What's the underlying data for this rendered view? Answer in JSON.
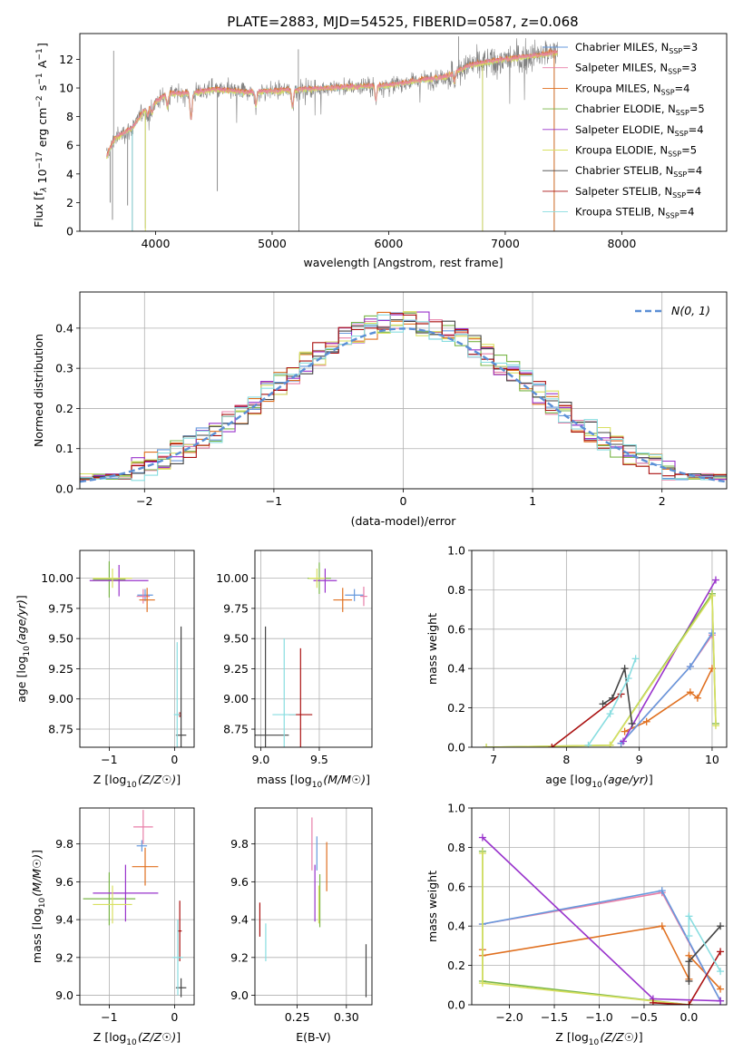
{
  "title": "PLATE=2883, MJD=54525, FIBERID=0587, z=0.068",
  "colors": {
    "chabrier_miles": "#6699dd",
    "salpeter_miles": "#e87fa8",
    "kroupa_miles": "#e07020",
    "chabrier_elodie": "#7ab648",
    "salpeter_elodie": "#9933cc",
    "kroupa_elodie": "#d8e060",
    "chabrier_stelib": "#444444",
    "salpeter_stelib": "#aa1111",
    "kroupa_stelib": "#88dde0",
    "observed": "#808080",
    "gaussian": "#5b8fd6",
    "grid": "#b0b0b0"
  },
  "chart_data": [
    {
      "id": "spectrum",
      "type": "line",
      "xlabel": "wavelength [Angstrom, rest frame]",
      "ylabel": "Flux [f_λ 10^-17 erg cm^-2 s^-1 A^-1]",
      "xlim": [
        3350,
        8900
      ],
      "ylim": [
        0,
        13.8
      ],
      "xticks": [
        4000,
        5000,
        6000,
        7000,
        8000
      ],
      "yticks": [
        0,
        2,
        4,
        6,
        8,
        10,
        12
      ],
      "grid": false,
      "legend_position": "right",
      "legend": [
        {
          "label": "Chabrier MILES, N",
          "sub": "SSP",
          "suffix": "=3",
          "color_key": "chabrier_miles"
        },
        {
          "label": "Salpeter MILES, N",
          "sub": "SSP",
          "suffix": "=3",
          "color_key": "salpeter_miles"
        },
        {
          "label": "Kroupa MILES, N",
          "sub": "SSP",
          "suffix": "=4",
          "color_key": "kroupa_miles"
        },
        {
          "label": "Chabrier ELODIE, N",
          "sub": "SSP",
          "suffix": "=5",
          "color_key": "chabrier_elodie"
        },
        {
          "label": "Salpeter ELODIE, N",
          "sub": "SSP",
          "suffix": "=4",
          "color_key": "salpeter_elodie"
        },
        {
          "label": "Kroupa ELODIE, N",
          "sub": "SSP",
          "suffix": "=5",
          "color_key": "kroupa_elodie"
        },
        {
          "label": "Chabrier STELIB, N",
          "sub": "SSP",
          "suffix": "=4",
          "color_key": "chabrier_stelib"
        },
        {
          "label": "Salpeter STELIB, N",
          "sub": "SSP",
          "suffix": "=4",
          "color_key": "salpeter_stelib"
        },
        {
          "label": "Kroupa STELIB, N",
          "sub": "SSP",
          "suffix": "=4",
          "color_key": "kroupa_stelib"
        }
      ],
      "continuum": [
        [
          3580,
          5.2
        ],
        [
          3650,
          6.5
        ],
        [
          3800,
          7.2
        ],
        [
          3900,
          8.4
        ],
        [
          4000,
          9.0
        ],
        [
          4100,
          9.6
        ],
        [
          4300,
          9.6
        ],
        [
          4500,
          9.9
        ],
        [
          4800,
          9.7
        ],
        [
          5000,
          9.8
        ],
        [
          5500,
          10.0
        ],
        [
          6000,
          10.2
        ],
        [
          6500,
          10.8
        ],
        [
          6700,
          11.6
        ],
        [
          7000,
          12.0
        ],
        [
          7300,
          12.3
        ],
        [
          7450,
          12.5
        ]
      ],
      "absorption_features": [
        [
          3934,
          0.55
        ],
        [
          3969,
          0.55
        ],
        [
          4102,
          0.9
        ],
        [
          4304,
          1.8
        ],
        [
          4861,
          1.0
        ],
        [
          5175,
          1.2
        ],
        [
          5890,
          1.0
        ],
        [
          6563,
          0.6
        ]
      ],
      "deep_spikes": [
        [
          3610,
          2.0
        ],
        [
          3630,
          0.8
        ],
        [
          3760,
          1.8
        ],
        [
          3800,
          0.0
        ],
        [
          3912,
          0.2
        ],
        [
          5230,
          0.0
        ],
        [
          6805,
          0.0
        ],
        [
          7420,
          0.0
        ],
        [
          4530,
          2.8
        ]
      ],
      "tall_spikes": [
        [
          3640,
          12.6
        ],
        [
          5225,
          12.7
        ],
        [
          6600,
          13.6
        ],
        [
          7350,
          13.2
        ]
      ]
    },
    {
      "id": "residuals",
      "type": "histogram",
      "xlabel": "(data-model)/error",
      "ylabel": "Normed distribution",
      "xlim": [
        -2.5,
        2.5
      ],
      "ylim": [
        0,
        0.49
      ],
      "xticks": [
        -2,
        -1,
        0,
        1,
        2
      ],
      "yticks": [
        0.0,
        0.1,
        0.2,
        0.3,
        0.4
      ],
      "grid": true,
      "legend_position": "top-right",
      "gaussian_label": "N(0, 1)",
      "bin_width": 0.1,
      "series_count": 9
    },
    {
      "id": "age-vs-Z",
      "type": "errorbar",
      "xlabel": "Z [log10(Z/Z☉)]",
      "ylabel": "age  [log10(age/yr)]",
      "xlim": [
        -1.45,
        0.3
      ],
      "ylim": [
        8.6,
        10.23
      ],
      "xticks": [
        -1,
        0
      ],
      "yticks": [
        8.75,
        9.0,
        9.25,
        9.5,
        9.75,
        10.0
      ],
      "grid": true,
      "points": [
        {
          "k": "chabrier_miles",
          "x": -0.45,
          "y": 9.86,
          "ex": 0.12,
          "ey": 0.05
        },
        {
          "k": "salpeter_miles",
          "x": -0.48,
          "y": 9.85,
          "ex": 0.1,
          "ey": 0.06
        },
        {
          "k": "kroupa_miles",
          "x": -0.42,
          "y": 9.82,
          "ex": 0.12,
          "ey": 0.1
        },
        {
          "k": "chabrier_elodie",
          "x": -1.0,
          "y": 9.99,
          "ex": 0.25,
          "ey": 0.15
        },
        {
          "k": "salpeter_elodie",
          "x": -0.85,
          "y": 9.98,
          "ex": 0.45,
          "ey": 0.13
        },
        {
          "k": "kroupa_elodie",
          "x": -0.95,
          "y": 10.0,
          "ex": 0.3,
          "ey": 0.08
        },
        {
          "k": "chabrier_stelib",
          "x": 0.1,
          "y": 8.7,
          "ex": 0.08,
          "ey": 0.9
        },
        {
          "k": "salpeter_stelib",
          "x": 0.08,
          "y": 8.87,
          "ex": 0.02,
          "ey": 0.02
        },
        {
          "k": "kroupa_stelib",
          "x": 0.04,
          "y": 8.87,
          "ex": 0.05,
          "ey": 0.6
        }
      ]
    },
    {
      "id": "age-vs-mass",
      "type": "errorbar",
      "xlabel": "mass [log10(M/M☉)]",
      "ylabel": "",
      "xlim": [
        8.95,
        9.95
      ],
      "ylim": [
        8.6,
        10.23
      ],
      "xticks": [
        9.0,
        9.5
      ],
      "yticks": [
        8.75,
        9.0,
        9.25,
        9.5,
        9.75,
        10.0
      ],
      "grid": true,
      "points": [
        {
          "k": "chabrier_miles",
          "x": 9.8,
          "y": 9.86,
          "ex": 0.08,
          "ey": 0.05
        },
        {
          "k": "salpeter_miles",
          "x": 9.88,
          "y": 9.85,
          "ex": 0.03,
          "ey": 0.08
        },
        {
          "k": "kroupa_miles",
          "x": 9.7,
          "y": 9.82,
          "ex": 0.08,
          "ey": 0.1
        },
        {
          "k": "chabrier_elodie",
          "x": 9.5,
          "y": 10.0,
          "ex": 0.1,
          "ey": 0.13
        },
        {
          "k": "salpeter_elodie",
          "x": 9.55,
          "y": 9.98,
          "ex": 0.1,
          "ey": 0.1
        },
        {
          "k": "kroupa_elodie",
          "x": 9.48,
          "y": 10.0,
          "ex": 0.07,
          "ey": 0.08
        },
        {
          "k": "chabrier_stelib",
          "x": 9.04,
          "y": 8.7,
          "ex": 0.2,
          "ey": 0.9
        },
        {
          "k": "salpeter_stelib",
          "x": 9.34,
          "y": 8.87,
          "ex": 0.1,
          "ey": 0.55
        },
        {
          "k": "kroupa_stelib",
          "x": 9.2,
          "y": 8.87,
          "ex": 0.1,
          "ey": 0.63
        }
      ]
    },
    {
      "id": "massweight-vs-age",
      "type": "line",
      "xlabel": "age  [log10(age/yr)]",
      "ylabel": "mass weight",
      "xlim": [
        6.7,
        10.2
      ],
      "ylim": [
        0,
        1.0
      ],
      "xticks": [
        7,
        8,
        9,
        10
      ],
      "yticks": [
        0.0,
        0.2,
        0.4,
        0.6,
        0.8,
        1.0
      ],
      "grid": true,
      "series": [
        {
          "k": "kroupa_miles",
          "x": [
            8.8,
            9.1,
            9.7,
            9.8,
            10.0
          ],
          "y": [
            0.08,
            0.13,
            0.28,
            0.25,
            0.4
          ]
        },
        {
          "k": "salpeter_miles",
          "x": [
            8.75,
            9.7,
            10.0
          ],
          "y": [
            0.02,
            0.41,
            0.57
          ]
        },
        {
          "k": "chabrier_miles",
          "x": [
            8.75,
            9.7,
            10.0
          ],
          "y": [
            0.02,
            0.41,
            0.58
          ]
        },
        {
          "k": "salpeter_elodie",
          "x": [
            8.78,
            10.05
          ],
          "y": [
            0.03,
            0.85
          ]
        },
        {
          "k": "chabrier_elodie",
          "x": [
            6.9,
            8.6,
            10.0,
            10.05
          ],
          "y": [
            0.0,
            0.01,
            0.78,
            0.12
          ]
        },
        {
          "k": "kroupa_elodie",
          "x": [
            6.9,
            8.6,
            10.0,
            10.05
          ],
          "y": [
            0.0,
            0.01,
            0.77,
            0.11
          ]
        },
        {
          "k": "chabrier_stelib",
          "x": [
            8.5,
            8.63,
            8.8,
            8.9
          ],
          "y": [
            0.22,
            0.25,
            0.4,
            0.12
          ]
        },
        {
          "k": "salpeter_stelib",
          "x": [
            7.8,
            8.75
          ],
          "y": [
            0.0,
            0.27
          ]
        },
        {
          "k": "kroupa_stelib",
          "x": [
            8.3,
            8.6,
            8.85,
            8.95
          ],
          "y": [
            0.01,
            0.17,
            0.35,
            0.45
          ]
        }
      ]
    },
    {
      "id": "mass-vs-Z",
      "type": "errorbar",
      "xlabel": "Z [log10(Z/Z☉)]",
      "ylabel": "mass [log10(M/M☉)]",
      "xlim": [
        -1.45,
        0.3
      ],
      "ylim": [
        8.95,
        9.99
      ],
      "xticks": [
        -1,
        0
      ],
      "yticks": [
        9.0,
        9.2,
        9.4,
        9.6,
        9.8
      ],
      "grid": true,
      "points": [
        {
          "k": "chabrier_miles",
          "x": -0.5,
          "y": 9.79,
          "ex": 0.08,
          "ey": 0.03
        },
        {
          "k": "salpeter_miles",
          "x": -0.48,
          "y": 9.89,
          "ex": 0.15,
          "ey": 0.09
        },
        {
          "k": "kroupa_miles",
          "x": -0.45,
          "y": 9.68,
          "ex": 0.2,
          "ey": 0.1
        },
        {
          "k": "chabrier_elodie",
          "x": -1.0,
          "y": 9.51,
          "ex": 0.4,
          "ey": 0.14
        },
        {
          "k": "salpeter_elodie",
          "x": -0.75,
          "y": 9.54,
          "ex": 0.5,
          "ey": 0.15
        },
        {
          "k": "kroupa_elodie",
          "x": -0.95,
          "y": 9.48,
          "ex": 0.3,
          "ey": 0.1
        },
        {
          "k": "chabrier_stelib",
          "x": 0.1,
          "y": 9.04,
          "ex": 0.08,
          "ey": 0.05
        },
        {
          "k": "salpeter_stelib",
          "x": 0.08,
          "y": 9.34,
          "ex": 0.03,
          "ey": 0.16
        },
        {
          "k": "kroupa_stelib",
          "x": 0.05,
          "y": 9.2,
          "ex": 0.08,
          "ey": 0.2
        }
      ]
    },
    {
      "id": "mass-vs-EBV",
      "type": "errorbar",
      "xlabel": "E(B-V)",
      "ylabel": "",
      "xlim": [
        0.207,
        0.326
      ],
      "ylim": [
        8.95,
        9.99
      ],
      "xticks": [
        0.25,
        0.3
      ],
      "yticks": [
        9.0,
        9.2,
        9.4,
        9.6,
        9.8
      ],
      "grid": true,
      "points": [
        {
          "k": "chabrier_miles",
          "x": 0.27,
          "y": 9.75,
          "ex": 0.0,
          "ey": 0.09
        },
        {
          "k": "salpeter_miles",
          "x": 0.265,
          "y": 9.8,
          "ex": 0.0,
          "ey": 0.14
        },
        {
          "k": "kroupa_miles",
          "x": 0.28,
          "y": 9.68,
          "ex": 0.0,
          "ey": 0.13
        },
        {
          "k": "chabrier_elodie",
          "x": 0.273,
          "y": 9.5,
          "ex": 0.0,
          "ey": 0.14
        },
        {
          "k": "salpeter_elodie",
          "x": 0.268,
          "y": 9.54,
          "ex": 0.0,
          "ey": 0.15
        },
        {
          "k": "kroupa_elodie",
          "x": 0.272,
          "y": 9.48,
          "ex": 0.0,
          "ey": 0.1
        },
        {
          "k": "chabrier_stelib",
          "x": 0.32,
          "y": 9.13,
          "ex": 0.0,
          "ey": 0.14
        },
        {
          "k": "salpeter_stelib",
          "x": 0.212,
          "y": 9.4,
          "ex": 0.0,
          "ey": 0.09
        },
        {
          "k": "kroupa_stelib",
          "x": 0.218,
          "y": 9.28,
          "ex": 0.0,
          "ey": 0.1
        }
      ]
    },
    {
      "id": "massweight-vs-Z",
      "type": "line",
      "xlabel": "Z [log10(Z/Z☉)]",
      "ylabel": "mass weight",
      "xlim": [
        -2.42,
        0.42
      ],
      "ylim": [
        0,
        1.0
      ],
      "xticks": [
        -2.0,
        -1.5,
        -1.0,
        -0.5,
        0.0
      ],
      "yticks": [
        0.0,
        0.2,
        0.4,
        0.6,
        0.8,
        1.0
      ],
      "grid": true,
      "series": [
        {
          "k": "kroupa_miles",
          "x": [
            -2.3,
            -2.3,
            -0.3,
            0.0,
            0.0,
            0.35
          ],
          "y": [
            0.28,
            0.25,
            0.4,
            0.13,
            0.25,
            0.08
          ]
        },
        {
          "k": "salpeter_miles",
          "x": [
            -2.3,
            -0.3,
            0.35
          ],
          "y": [
            0.41,
            0.57,
            0.02
          ]
        },
        {
          "k": "chabrier_miles",
          "x": [
            -2.3,
            -0.3,
            0.35
          ],
          "y": [
            0.41,
            0.58,
            0.02
          ]
        },
        {
          "k": "salpeter_elodie",
          "x": [
            -2.3,
            -0.4,
            0.35
          ],
          "y": [
            0.85,
            0.03,
            0.02
          ]
        },
        {
          "k": "chabrier_elodie",
          "x": [
            -2.3,
            -2.3,
            0.0
          ],
          "y": [
            0.78,
            0.12,
            0.0
          ]
        },
        {
          "k": "kroupa_elodie",
          "x": [
            -2.3,
            -2.3,
            0.0
          ],
          "y": [
            0.77,
            0.11,
            0.0
          ]
        },
        {
          "k": "chabrier_stelib",
          "x": [
            0.0,
            0.0,
            0.35
          ],
          "y": [
            0.12,
            0.22,
            0.4
          ]
        },
        {
          "k": "salpeter_stelib",
          "x": [
            -0.4,
            0.0,
            0.35
          ],
          "y": [
            0.01,
            0.0,
            0.27
          ]
        },
        {
          "k": "kroupa_stelib",
          "x": [
            0.0,
            0.0,
            0.35
          ],
          "y": [
            0.35,
            0.45,
            0.17
          ]
        }
      ]
    }
  ]
}
